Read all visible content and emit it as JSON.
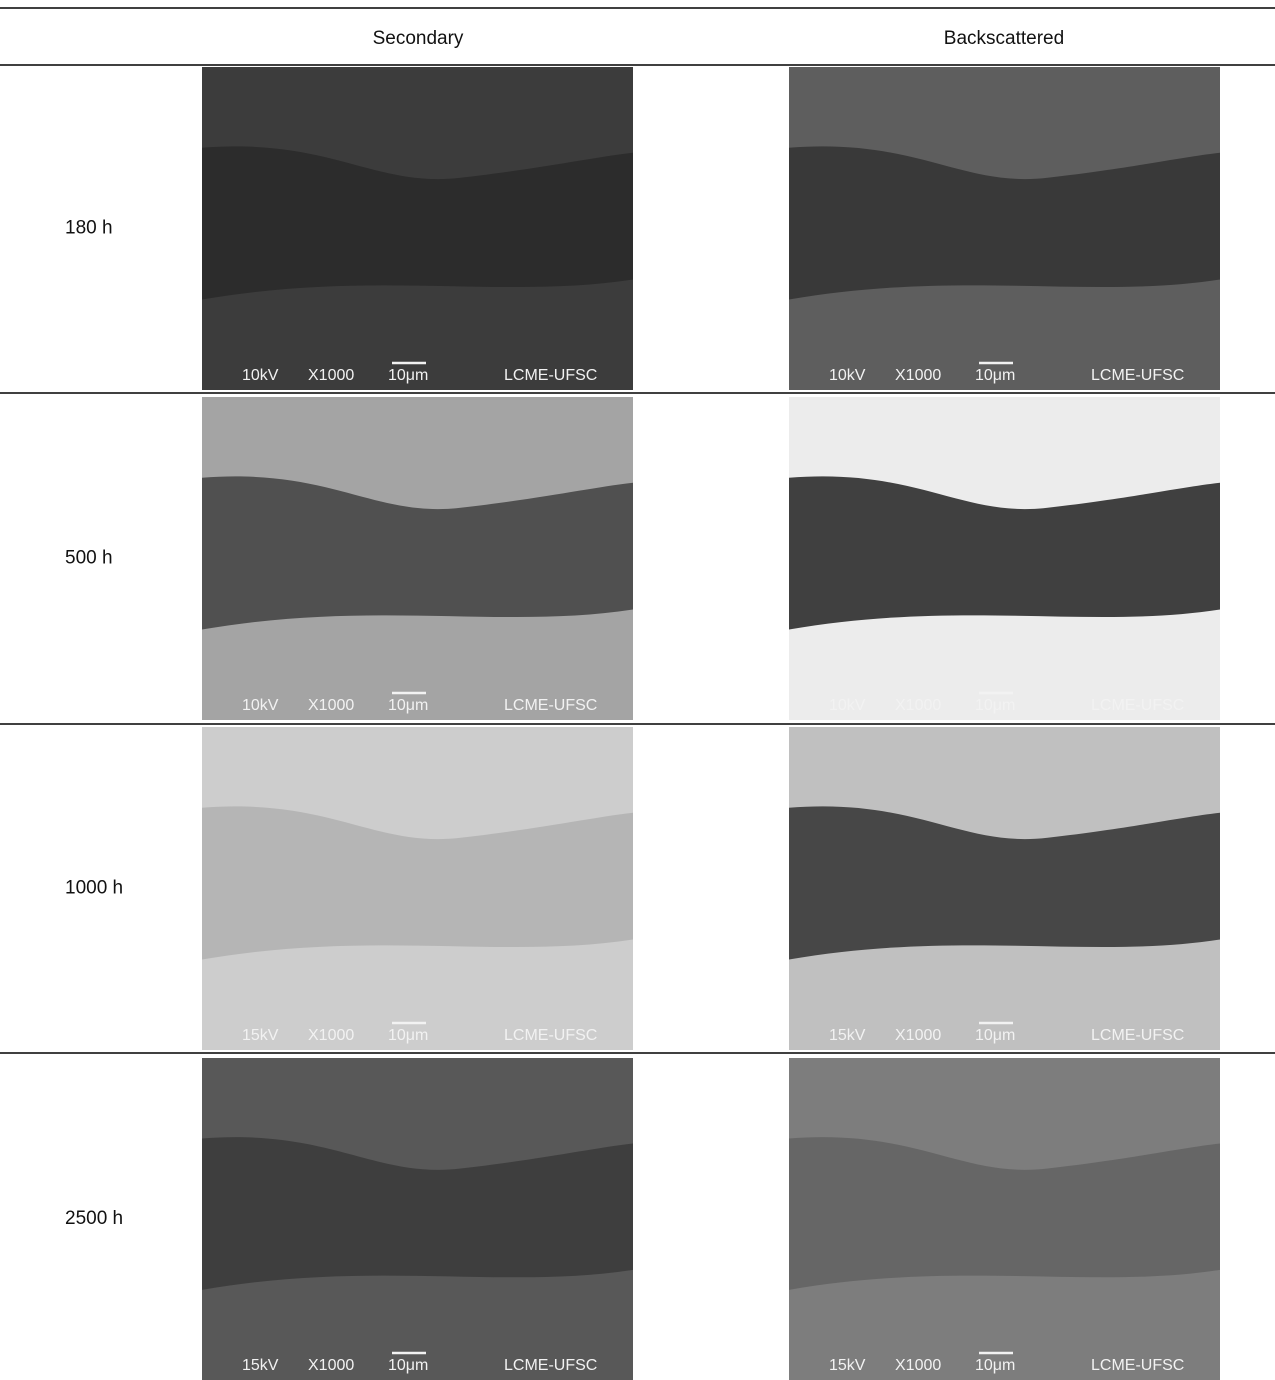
{
  "table": {
    "headers": [
      "Secondary",
      "Backscattered"
    ],
    "rows": [
      {
        "label": "180 h",
        "images": [
          {
            "voltage": "10kV",
            "magnification": "X1000",
            "scale": "10μm",
            "lab": "LCME-UFSC"
          },
          {
            "voltage": "10kV",
            "magnification": "X1000",
            "scale": "10μm",
            "lab": "LCME-UFSC"
          }
        ]
      },
      {
        "label": "500 h",
        "images": [
          {
            "voltage": "10kV",
            "magnification": "X1000",
            "scale": "10μm",
            "lab": "LCME-UFSC"
          },
          {
            "voltage": "10kV",
            "magnification": "X1000",
            "scale": "10μm",
            "lab": "LCME-UFSC"
          }
        ]
      },
      {
        "label": "1000 h",
        "images": [
          {
            "voltage": "15kV",
            "magnification": "X1000",
            "scale": "10μm",
            "lab": "LCME-UFSC"
          },
          {
            "voltage": "15kV",
            "magnification": "X1000",
            "scale": "10μm",
            "lab": "LCME-UFSC"
          }
        ]
      },
      {
        "label": "2500 h",
        "images": [
          {
            "voltage": "15kV",
            "magnification": "X1000",
            "scale": "10μm",
            "lab": "LCME-UFSC"
          },
          {
            "voltage": "15kV",
            "magnification": "X1000",
            "scale": "10μm",
            "lab": "LCME-UFSC"
          }
        ]
      }
    ]
  }
}
